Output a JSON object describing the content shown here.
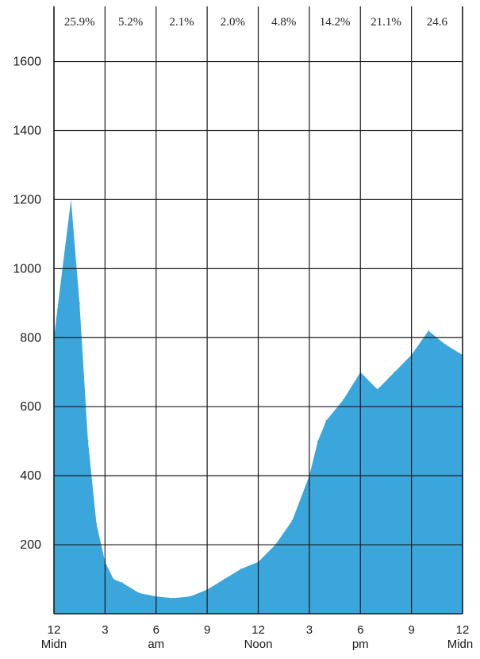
{
  "chart_data": {
    "type": "area",
    "x_ticks": [
      "12",
      "3",
      "6",
      "9",
      "12",
      "3",
      "6",
      "9",
      "12"
    ],
    "x_sublabels": [
      {
        "label": "Midn",
        "at": 0
      },
      {
        "label": "am",
        "at": 6
      },
      {
        "label": "Noon",
        "at": 12
      },
      {
        "label": "pm",
        "at": 18
      },
      {
        "label": "Midn",
        "at": 24
      }
    ],
    "y_ticks": [
      200,
      400,
      600,
      800,
      1000,
      1200,
      1400,
      1600
    ],
    "ylim": [
      0,
      1760
    ],
    "xlim": [
      0,
      24
    ],
    "grid": true,
    "color": "#3ba6dc",
    "percentages": [
      "25.9%",
      "5.2%",
      "2.1%",
      "2.0%",
      "4.8%",
      "14.2%",
      "21.1%",
      "24.6"
    ],
    "series": [
      {
        "x": [
          0,
          0.5,
          1,
          1.5,
          2,
          2.5,
          3,
          3.5,
          4,
          5,
          6,
          7,
          8,
          9,
          10,
          11,
          12,
          13,
          14,
          15,
          15.5,
          16,
          17,
          18,
          19,
          20,
          21,
          22,
          23,
          24
        ],
        "y": [
          800,
          1000,
          1200,
          900,
          500,
          260,
          150,
          100,
          90,
          60,
          50,
          45,
          50,
          70,
          100,
          130,
          150,
          200,
          270,
          400,
          500,
          560,
          620,
          700,
          650,
          700,
          750,
          820,
          780,
          750
        ]
      }
    ]
  }
}
